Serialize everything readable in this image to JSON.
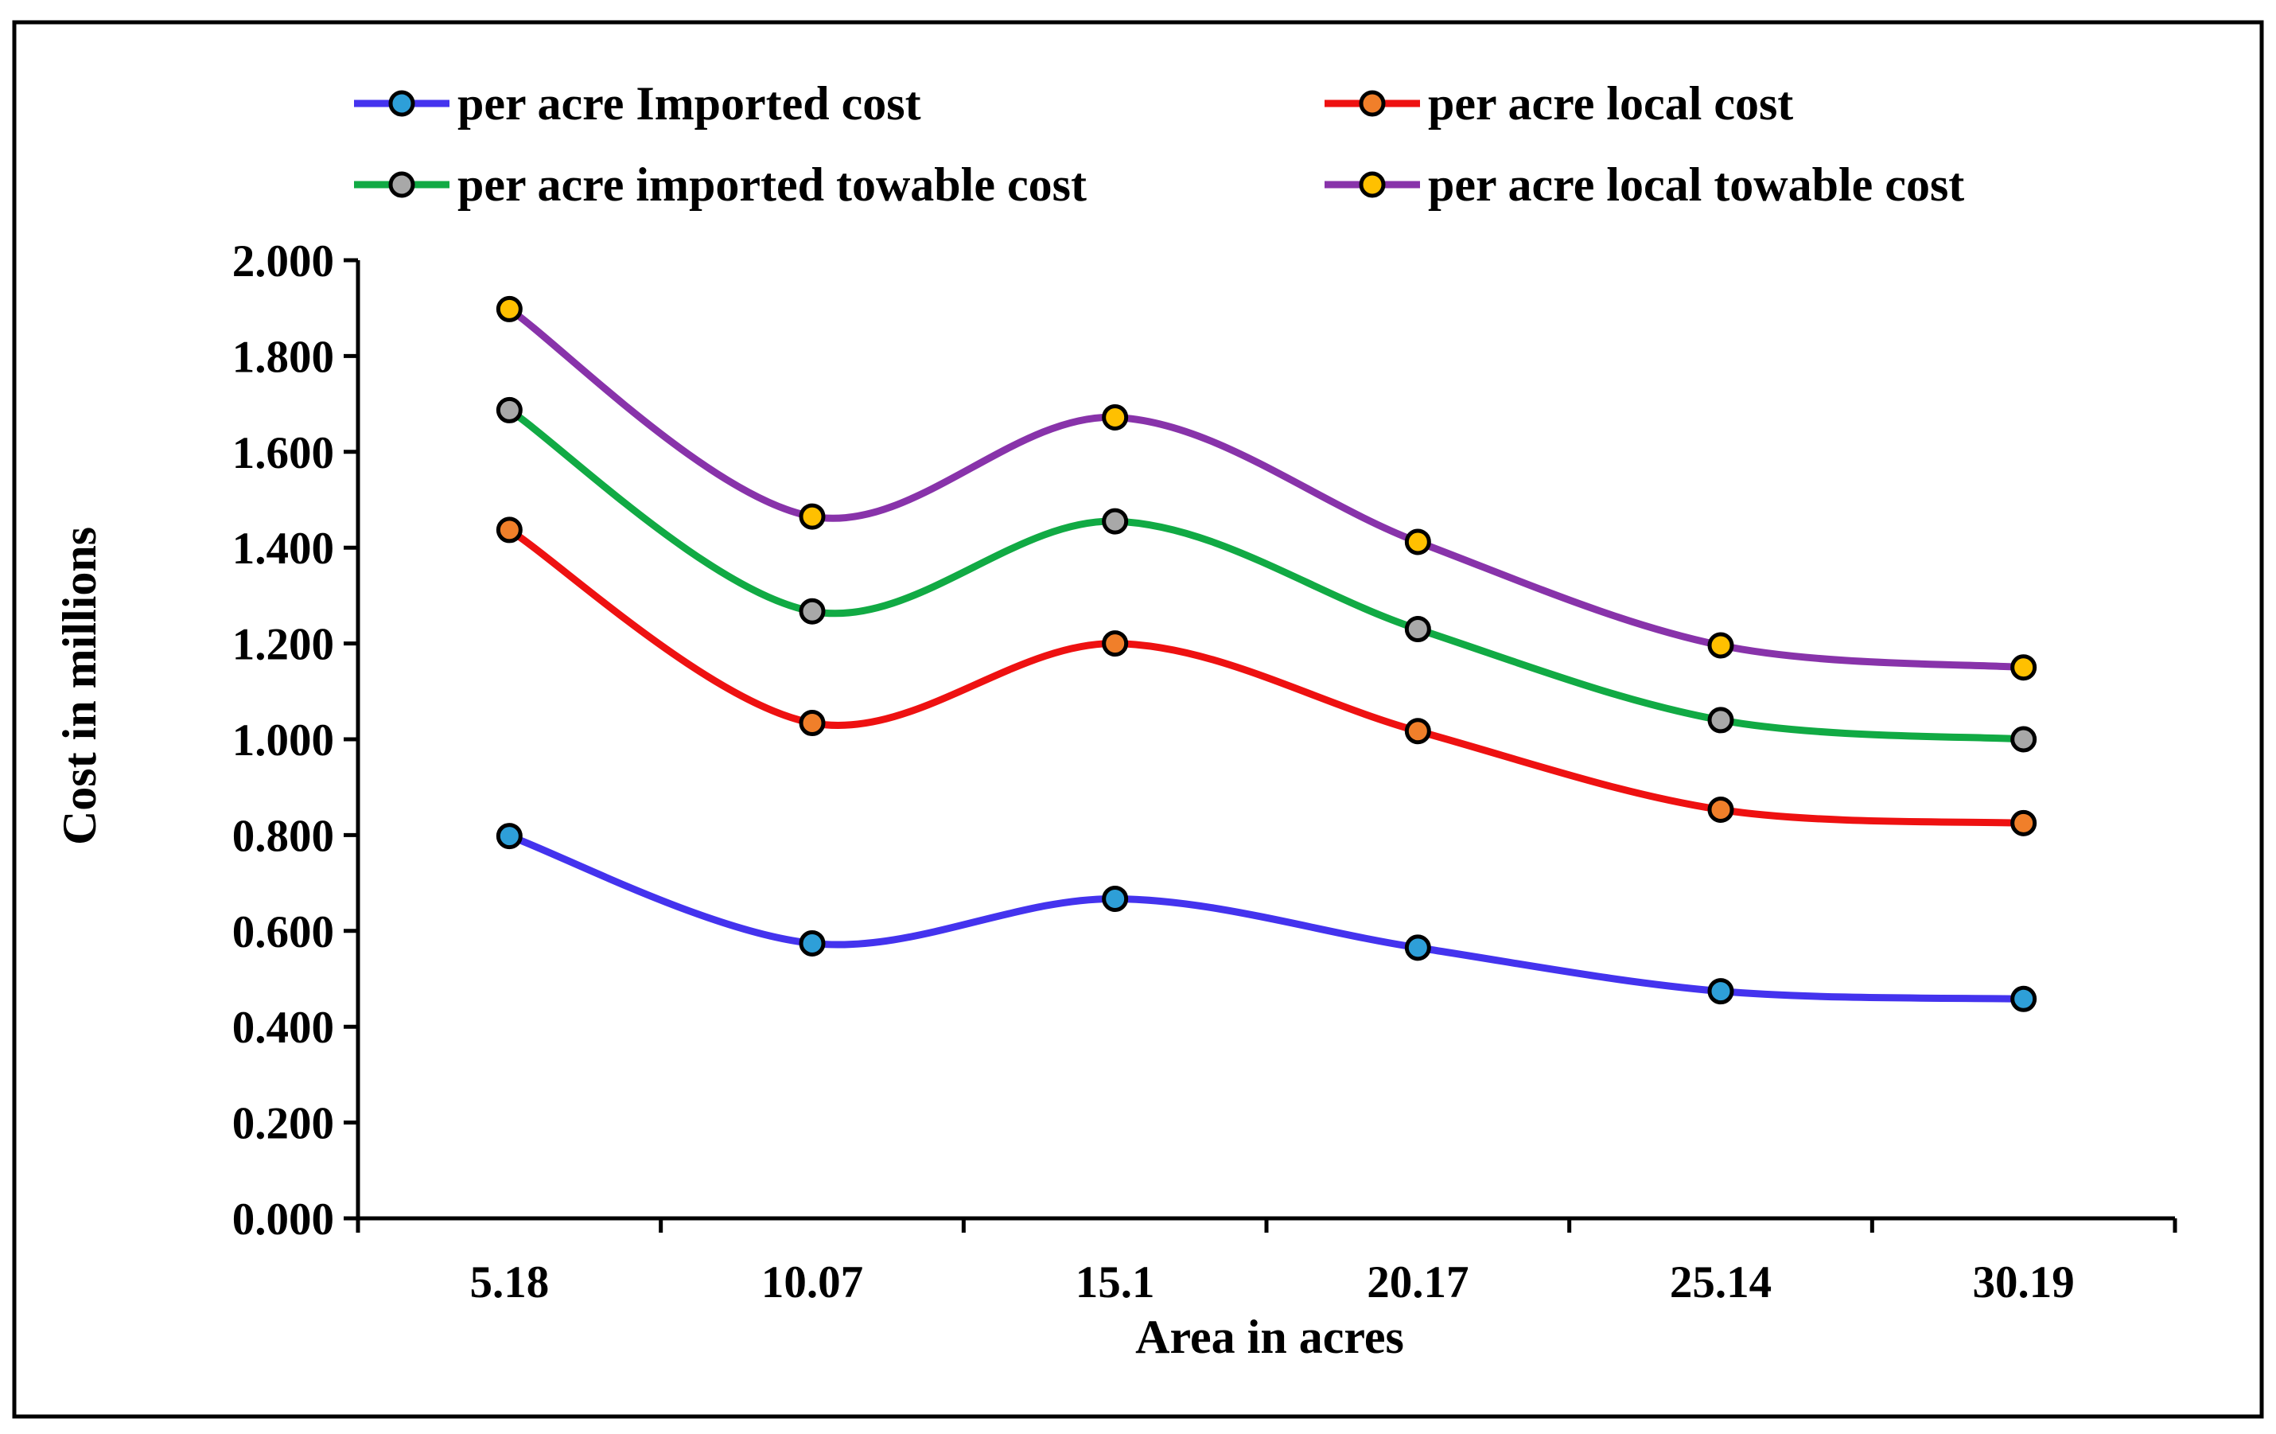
{
  "chart_data": {
    "type": "line",
    "title": "",
    "xlabel": "Area in acres",
    "ylabel": "Cost in millions",
    "categories": [
      "5.18",
      "10.07",
      "15.1",
      "20.17",
      "25.14",
      "30.19"
    ],
    "ylim": [
      0,
      2
    ],
    "yticks": [
      "0.000",
      "0.200",
      "0.400",
      "0.600",
      "0.800",
      "1.000",
      "1.200",
      "1.400",
      "1.600",
      "1.800",
      "2.000"
    ],
    "grid": false,
    "legend_position": "top",
    "series": [
      {
        "name": "per acre Imported cost",
        "line_color": "#4433ee",
        "marker_color": "#2e9fd8",
        "values": [
          0.798,
          0.574,
          0.667,
          0.565,
          0.474,
          0.458
        ]
      },
      {
        "name": "per acre local cost",
        "line_color": "#ee1111",
        "marker_color": "#f07f2a",
        "values": [
          1.437,
          1.034,
          1.2,
          1.017,
          0.853,
          0.825
        ]
      },
      {
        "name": "per acre imported towable cost",
        "line_color": "#11aa44",
        "marker_color": "#a8a8a8",
        "values": [
          1.687,
          1.267,
          1.455,
          1.23,
          1.04,
          1.0
        ]
      },
      {
        "name": "per acre local towable cost",
        "line_color": "#8833aa",
        "marker_color": "#ffc000",
        "values": [
          1.898,
          1.465,
          1.672,
          1.412,
          1.196,
          1.15
        ]
      }
    ]
  }
}
